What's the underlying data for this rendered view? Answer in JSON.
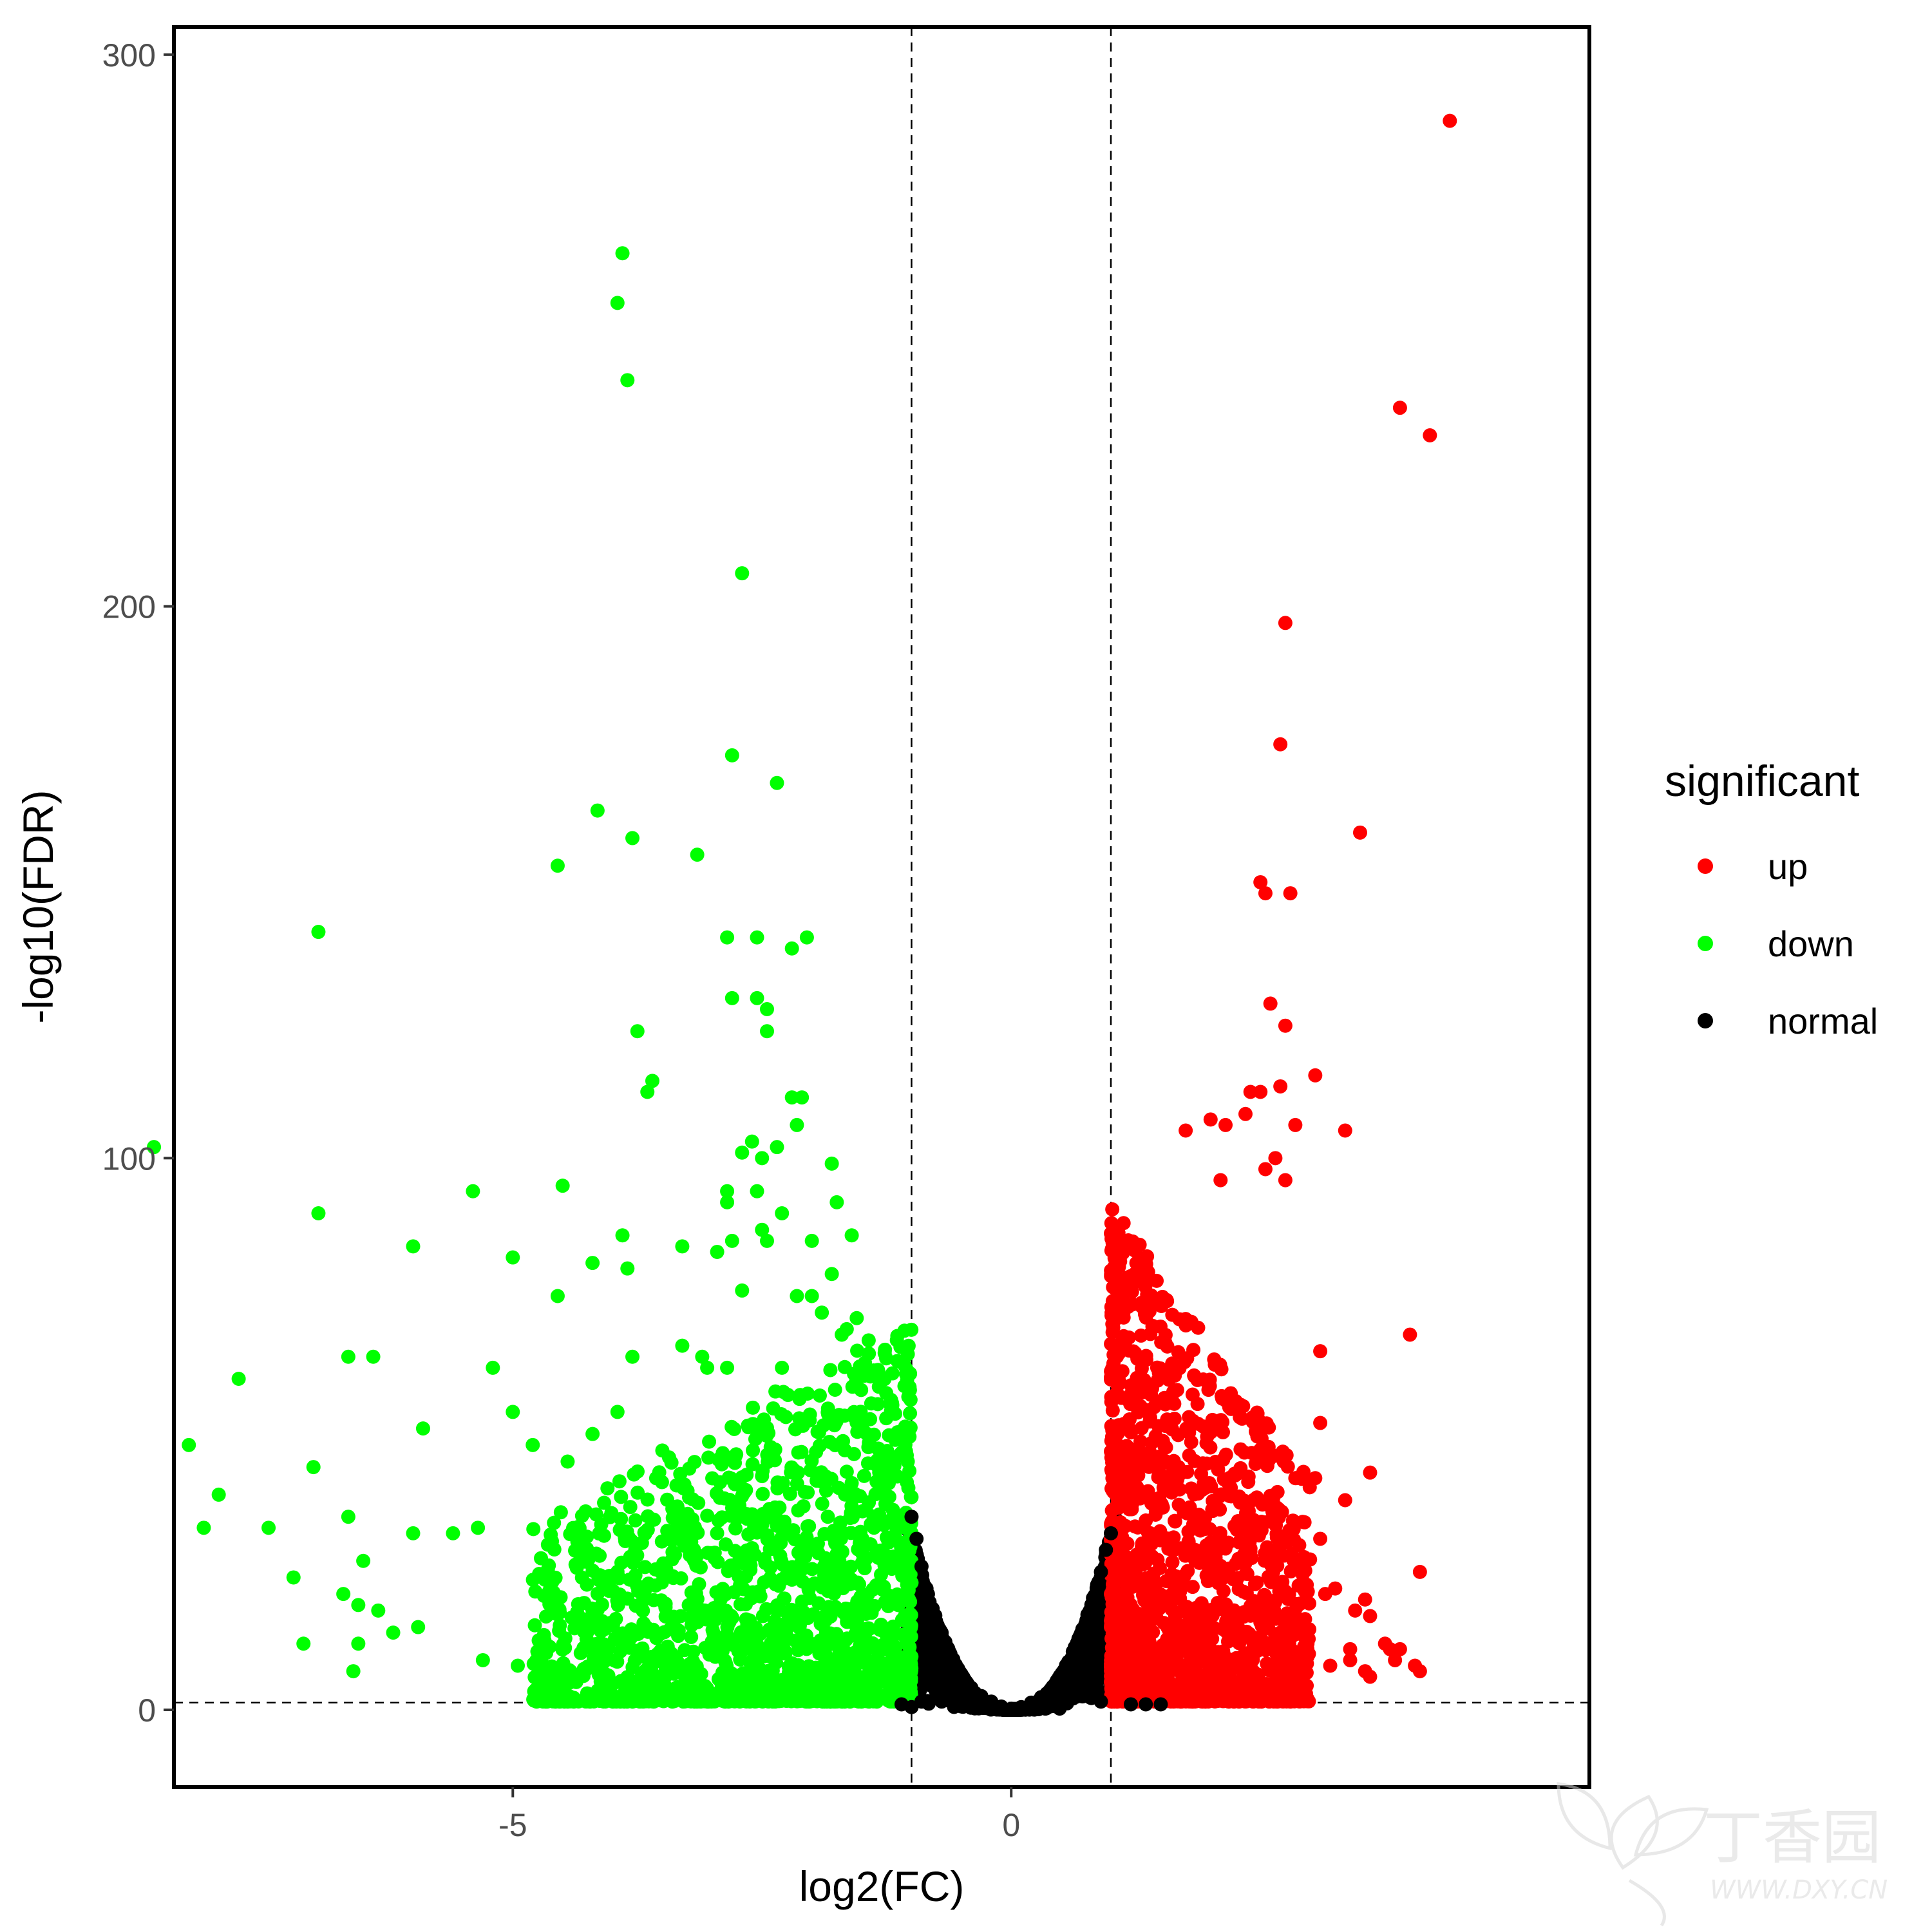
{
  "chart_data": {
    "type": "scatter",
    "xlabel": "log2(FC)",
    "ylabel": "-log10(FDR)",
    "xlim": [
      -8.4,
      5.8
    ],
    "ylim": [
      -14,
      305
    ],
    "x_ticks": [
      {
        "value": -5,
        "label": "-5"
      },
      {
        "value": 0,
        "label": "0"
      }
    ],
    "y_ticks": [
      {
        "value": 0,
        "label": "0"
      },
      {
        "value": 100,
        "label": "100"
      },
      {
        "value": 200,
        "label": "200"
      },
      {
        "value": 300,
        "label": "300"
      }
    ],
    "thresholds": {
      "vertical": [
        -1,
        1
      ],
      "horizontal": [
        1.3
      ]
    },
    "grid": false,
    "legend": {
      "title": "significant",
      "placement": "right",
      "entries": [
        {
          "label": "up",
          "color": "#ff0000"
        },
        {
          "label": "down",
          "color": "#00ff00"
        },
        {
          "label": "normal",
          "color": "#000000"
        }
      ]
    },
    "series": [
      {
        "name": "up",
        "color": "#ff0000",
        "points": [
          [
            4.4,
            288
          ],
          [
            3.9,
            236
          ],
          [
            4.2,
            231
          ],
          [
            2.75,
            197
          ],
          [
            2.7,
            175
          ],
          [
            3.5,
            159
          ],
          [
            2.5,
            150
          ],
          [
            2.55,
            148
          ],
          [
            2.8,
            148
          ],
          [
            2.6,
            128
          ],
          [
            2.75,
            124
          ],
          [
            3.05,
            115
          ],
          [
            2.7,
            113
          ],
          [
            2.4,
            112
          ],
          [
            2.5,
            112
          ],
          [
            2.35,
            108
          ],
          [
            2.0,
            107
          ],
          [
            3.35,
            105
          ],
          [
            1.75,
            105
          ],
          [
            2.15,
            106
          ],
          [
            2.85,
            106
          ],
          [
            2.65,
            100
          ],
          [
            2.75,
            96
          ],
          [
            2.55,
            98
          ],
          [
            2.1,
            96
          ],
          [
            4.0,
            68
          ],
          [
            3.1,
            65
          ],
          [
            3.1,
            52
          ],
          [
            3.6,
            43
          ],
          [
            2.95,
            42
          ],
          [
            3.05,
            42
          ],
          [
            2.85,
            42
          ],
          [
            3.35,
            38
          ],
          [
            3.1,
            31
          ],
          [
            4.1,
            25
          ],
          [
            3.25,
            22
          ],
          [
            3.15,
            21
          ],
          [
            3.55,
            20
          ],
          [
            3.45,
            18
          ],
          [
            3.6,
            17
          ],
          [
            3.75,
            12
          ],
          [
            3.4,
            11
          ],
          [
            3.4,
            9
          ],
          [
            3.55,
            7
          ],
          [
            3.8,
            11
          ],
          [
            3.9,
            11
          ],
          [
            4.05,
            8
          ],
          [
            3.2,
            8
          ],
          [
            3.85,
            9
          ],
          [
            3.6,
            6
          ],
          [
            4.1,
            7
          ]
        ]
      },
      {
        "name": "down",
        "color": "#00ff00",
        "points": [
          [
            -3.9,
            264
          ],
          [
            -3.95,
            255
          ],
          [
            -3.85,
            241
          ],
          [
            -2.7,
            206
          ],
          [
            -2.8,
            173
          ],
          [
            -2.35,
            168
          ],
          [
            -4.15,
            163
          ],
          [
            -3.8,
            158
          ],
          [
            -3.15,
            155
          ],
          [
            -4.55,
            153
          ],
          [
            -6.95,
            141
          ],
          [
            -2.85,
            140
          ],
          [
            -2.55,
            140
          ],
          [
            -2.05,
            140
          ],
          [
            -2.2,
            138
          ],
          [
            -2.8,
            129
          ],
          [
            -2.55,
            129
          ],
          [
            -2.45,
            127
          ],
          [
            -3.75,
            123
          ],
          [
            -2.45,
            123
          ],
          [
            -3.6,
            114
          ],
          [
            -3.65,
            112
          ],
          [
            -2.2,
            111
          ],
          [
            -2.1,
            111
          ],
          [
            -2.15,
            106
          ],
          [
            -2.6,
            103
          ],
          [
            -2.7,
            101
          ],
          [
            -2.35,
            102
          ],
          [
            -2.5,
            100
          ],
          [
            -8.6,
            102
          ],
          [
            -1.8,
            99
          ],
          [
            -2.85,
            94
          ],
          [
            -2.55,
            94
          ],
          [
            -2.85,
            92
          ],
          [
            -5.4,
            94
          ],
          [
            -4.5,
            95
          ],
          [
            -1.75,
            92
          ],
          [
            -6.95,
            90
          ],
          [
            -2.3,
            90
          ],
          [
            -1.6,
            86
          ],
          [
            -2.5,
            87
          ],
          [
            -3.9,
            86
          ],
          [
            -2.8,
            85
          ],
          [
            -2.0,
            85
          ],
          [
            -2.45,
            85
          ],
          [
            -6.0,
            84
          ],
          [
            -3.3,
            84
          ],
          [
            -2.95,
            83
          ],
          [
            -5.0,
            82
          ],
          [
            -4.2,
            81
          ],
          [
            -3.85,
            80
          ],
          [
            -1.8,
            79
          ],
          [
            -2.7,
            76
          ],
          [
            -2.0,
            75
          ],
          [
            -4.55,
            75
          ],
          [
            -2.15,
            75
          ],
          [
            -1.9,
            72
          ],
          [
            -1.55,
            71
          ],
          [
            -1.65,
            69
          ],
          [
            -3.3,
            66
          ],
          [
            -1.7,
            68
          ],
          [
            -6.65,
            64
          ],
          [
            -6.4,
            64
          ],
          [
            -7.75,
            60
          ],
          [
            -5.2,
            62
          ],
          [
            -3.8,
            64
          ],
          [
            -3.1,
            64
          ],
          [
            -3.05,
            62
          ],
          [
            -2.85,
            62
          ],
          [
            -2.3,
            62
          ],
          [
            -5.0,
            54
          ],
          [
            -8.25,
            48
          ],
          [
            -5.9,
            51
          ],
          [
            -4.8,
            48
          ],
          [
            -3.95,
            54
          ],
          [
            -7.0,
            44
          ],
          [
            -7.95,
            39
          ],
          [
            -4.45,
            45
          ],
          [
            -3.5,
            47
          ],
          [
            -4.2,
            50
          ],
          [
            -8.1,
            33
          ],
          [
            -7.45,
            33
          ],
          [
            -6.65,
            35
          ],
          [
            -5.6,
            32
          ],
          [
            -5.35,
            33
          ],
          [
            -6.0,
            32
          ],
          [
            -6.5,
            27
          ],
          [
            -7.2,
            24
          ],
          [
            -7.1,
            12
          ],
          [
            -6.7,
            21
          ],
          [
            -6.55,
            19
          ],
          [
            -6.35,
            18
          ],
          [
            -6.2,
            14
          ],
          [
            -5.95,
            15
          ],
          [
            -6.6,
            7
          ],
          [
            -6.55,
            12
          ],
          [
            -5.3,
            9
          ],
          [
            -4.95,
            8
          ]
        ]
      },
      {
        "name": "normal",
        "color": "#000000",
        "points": [
          [
            -1.0,
            35
          ],
          [
            -0.95,
            31
          ],
          [
            -0.9,
            26
          ],
          [
            -0.85,
            22
          ],
          [
            -0.8,
            18
          ],
          [
            -0.75,
            15
          ],
          [
            -0.7,
            12
          ],
          [
            -0.6,
            9
          ],
          [
            -0.5,
            6
          ],
          [
            -0.4,
            4
          ],
          [
            -0.3,
            2.5
          ],
          [
            -0.2,
            1.5
          ],
          [
            -0.1,
            0.6
          ],
          [
            0.0,
            0.2
          ],
          [
            0.1,
            0.5
          ],
          [
            0.2,
            1.3
          ],
          [
            0.3,
            2.3
          ],
          [
            0.4,
            3.6
          ],
          [
            0.5,
            5.5
          ],
          [
            0.6,
            8
          ],
          [
            0.7,
            11
          ],
          [
            0.8,
            16
          ],
          [
            0.85,
            20
          ],
          [
            0.9,
            25
          ],
          [
            0.95,
            29
          ],
          [
            1.0,
            32
          ],
          [
            -1.1,
            1
          ],
          [
            -1.0,
            0.5
          ],
          [
            1.2,
            1
          ],
          [
            1.35,
            1
          ],
          [
            1.5,
            1
          ],
          [
            -0.9,
            1.5
          ],
          [
            0.9,
            1.5
          ]
        ]
      }
    ]
  },
  "watermark": {
    "brand": "丁香园",
    "url": "WWW.DXY.CN"
  }
}
